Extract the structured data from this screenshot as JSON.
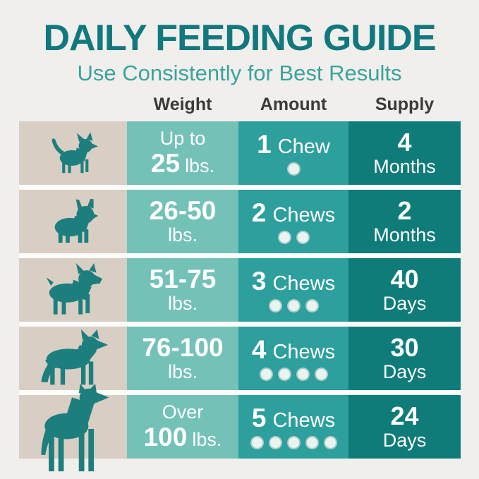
{
  "title": "DAILY FEEDING GUIDE",
  "subtitle": "Use Consistently for Best Results",
  "colors": {
    "background": "#f1efec",
    "title_teal": "#11797e",
    "subtitle_teal": "#3aa39c",
    "header_text": "#3b3a38",
    "dog_column_bg": "#d8cec3",
    "weight_column_bg": "#74c1b8",
    "amount_column_bg": "#2d9f9d",
    "supply_column_bg": "#0f7c79",
    "dog_silhouette": "#1d7f7d",
    "chew_dot": "#e9f4f0"
  },
  "table": {
    "headers": [
      "Weight",
      "Amount",
      "Supply"
    ],
    "rows": [
      {
        "dog_icon": "chihuahua-icon",
        "weight": {
          "line1_text": "Up to",
          "line1_big": "",
          "line2_big": "25",
          "line2_text": "lbs."
        },
        "amount": {
          "count": "1",
          "label": "Chew",
          "dots": 1
        },
        "supply": {
          "value": "4",
          "unit": "Months"
        }
      },
      {
        "dog_icon": "french-bulldog-icon",
        "weight": {
          "line1_text": "",
          "line1_big": "26-50",
          "line2_big": "",
          "line2_text": "lbs."
        },
        "amount": {
          "count": "2",
          "label": "Chews",
          "dots": 2
        },
        "supply": {
          "value": "2",
          "unit": "Months"
        }
      },
      {
        "dog_icon": "boxer-icon",
        "weight": {
          "line1_text": "",
          "line1_big": "51-75",
          "line2_big": "",
          "line2_text": "lbs."
        },
        "amount": {
          "count": "3",
          "label": "Chews",
          "dots": 3
        },
        "supply": {
          "value": "40",
          "unit": "Days"
        }
      },
      {
        "dog_icon": "german-shepherd-icon",
        "weight": {
          "line1_text": "",
          "line1_big": "76-100",
          "line2_big": "",
          "line2_text": "lbs."
        },
        "amount": {
          "count": "4",
          "label": "Chews",
          "dots": 4
        },
        "supply": {
          "value": "30",
          "unit": "Days"
        }
      },
      {
        "dog_icon": "great-dane-icon",
        "weight": {
          "line1_text": "Over",
          "line1_big": "",
          "line2_big": "100",
          "line2_text": "lbs."
        },
        "amount": {
          "count": "5",
          "label": "Chews",
          "dots": 5
        },
        "supply": {
          "value": "24",
          "unit": "Days"
        }
      }
    ]
  },
  "chart_data": {
    "type": "table",
    "title": "DAILY FEEDING GUIDE",
    "subtitle": "Use Consistently for Best Results",
    "columns": [
      "Weight",
      "Amount",
      "Supply"
    ],
    "rows": [
      [
        "Up to 25 lbs.",
        "1 Chew",
        "4 Months"
      ],
      [
        "26-50 lbs.",
        "2 Chews",
        "2 Months"
      ],
      [
        "51-75 lbs.",
        "3 Chews",
        "40 Days"
      ],
      [
        "76-100 lbs.",
        "4 Chews",
        "30 Days"
      ],
      [
        "Over 100 lbs.",
        "5 Chews",
        "24 Days"
      ]
    ]
  }
}
